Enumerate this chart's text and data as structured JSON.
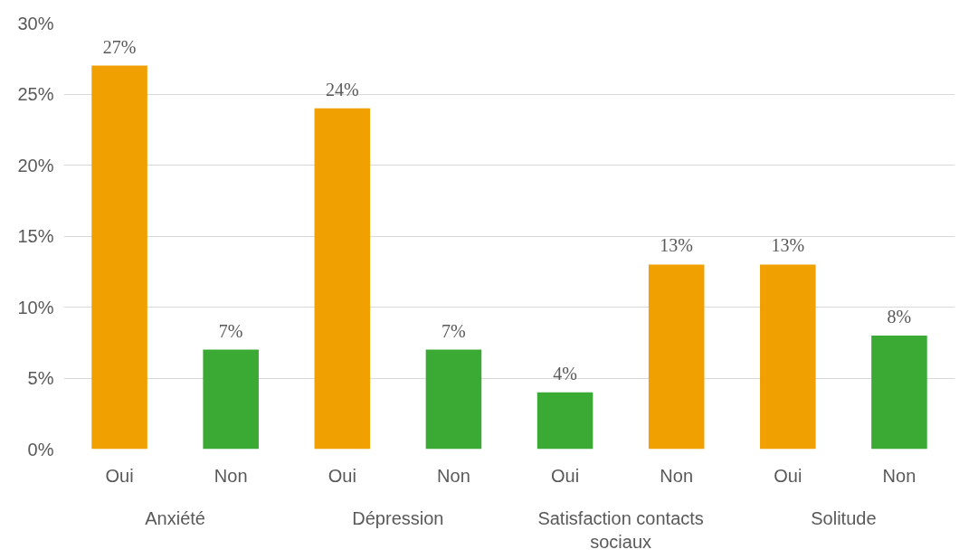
{
  "chart_data": {
    "type": "bar",
    "categories": [
      "Oui",
      "Non",
      "Oui",
      "Non",
      "Oui",
      "Non",
      "Oui",
      "Non"
    ],
    "values": [
      27,
      7,
      24,
      7,
      4,
      13,
      13,
      8
    ],
    "colors": [
      "#f0a000",
      "#3aaa35",
      "#f0a000",
      "#3aaa35",
      "#3aaa35",
      "#f0a000",
      "#f0a000",
      "#3aaa35"
    ],
    "value_labels": [
      "27%",
      "7%",
      "24%",
      "7%",
      "4%",
      "13%",
      "13%",
      "8%"
    ],
    "annotations": [
      "Anxiété",
      "Dépression",
      "Satisfaction contacts sociaux",
      "Solitude"
    ],
    "ylim": [
      0,
      30
    ],
    "yticks": [
      {
        "value": 0,
        "label": "0%"
      },
      {
        "value": 5,
        "label": "5%"
      },
      {
        "value": 10,
        "label": "10%"
      },
      {
        "value": 15,
        "label": "15%"
      },
      {
        "value": 20,
        "label": "20%"
      },
      {
        "value": 25,
        "label": "25%"
      },
      {
        "value": 30,
        "label": "30%"
      }
    ],
    "grid": "y"
  }
}
